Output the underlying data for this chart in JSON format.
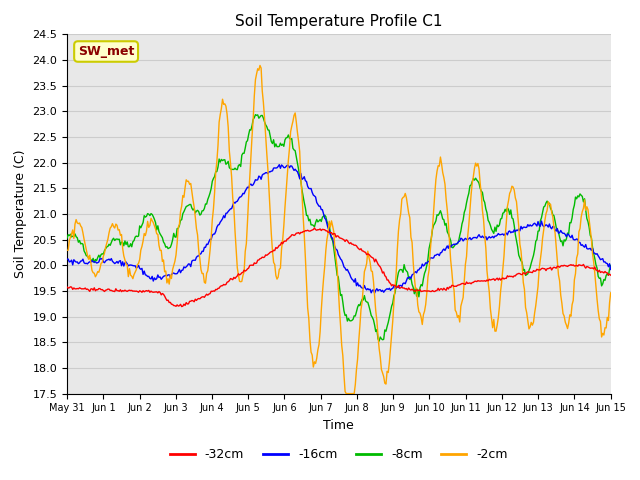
{
  "title": "Soil Temperature Profile C1",
  "xlabel": "Time",
  "ylabel": "Soil Temperature (C)",
  "ylim": [
    17.5,
    24.5
  ],
  "annotation_text": "SW_met",
  "annotation_color": "#8B0000",
  "annotation_bg": "#FFFFCC",
  "annotation_border": "#CCCC00",
  "series_colors": {
    "-32cm": "#FF0000",
    "-16cm": "#0000FF",
    "-8cm": "#00BB00",
    "-2cm": "#FFA500"
  },
  "grid_color": "#CCCCCC",
  "bg_color": "#E8E8E8",
  "xtick_labels": [
    "May 31",
    "Jun 1",
    "Jun 2",
    "Jun 3",
    "Jun 4",
    "Jun 5",
    "Jun 6",
    "Jun 7",
    "Jun 8",
    "Jun 9",
    "Jun 10",
    "Jun 11",
    "Jun 12",
    "Jun 13",
    "Jun 14",
    "Jun 15"
  ]
}
